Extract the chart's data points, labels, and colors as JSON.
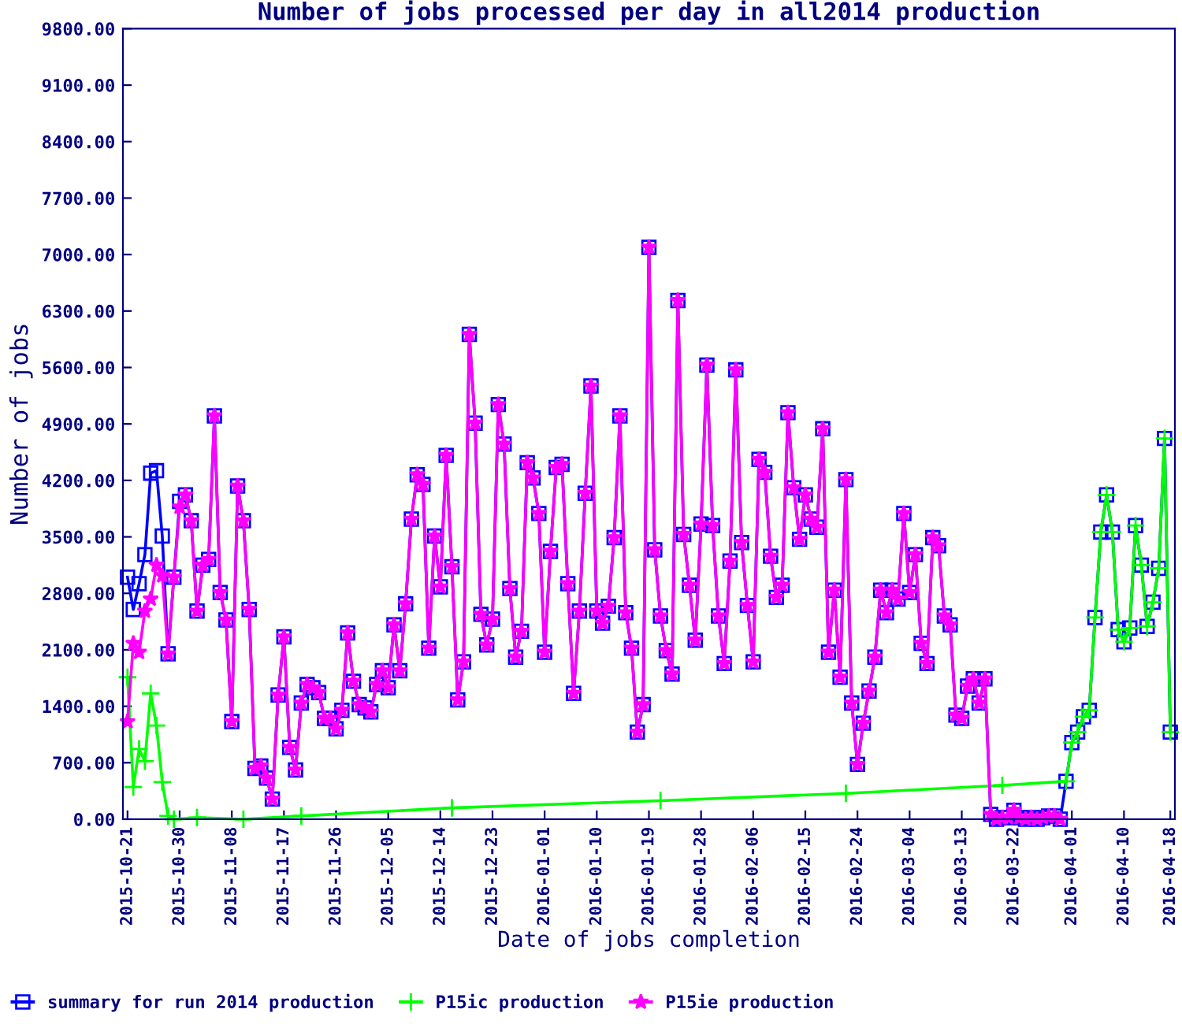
{
  "chart_data": {
    "type": "line",
    "title": "Number of jobs processed per day in all2014 production",
    "xlabel": "Date of jobs completion",
    "ylabel": "Number of jobs",
    "x": [
      "2015-10-21",
      "2015-10-22",
      "2015-10-23",
      "2015-10-24",
      "2015-10-25",
      "2015-10-26",
      "2015-10-27",
      "2015-10-28",
      "2015-10-29",
      "2015-10-30",
      "2015-10-31",
      "2015-11-01",
      "2015-11-02",
      "2015-11-03",
      "2015-11-04",
      "2015-11-05",
      "2015-11-06",
      "2015-11-07",
      "2015-11-08",
      "2015-11-09",
      "2015-11-10",
      "2015-11-11",
      "2015-11-12",
      "2015-11-13",
      "2015-11-14",
      "2015-11-15",
      "2015-11-16",
      "2015-11-17",
      "2015-11-18",
      "2015-11-19",
      "2015-11-20",
      "2015-11-21",
      "2015-11-22",
      "2015-11-23",
      "2015-11-24",
      "2015-11-25",
      "2015-11-26",
      "2015-11-27",
      "2015-11-28",
      "2015-11-29",
      "2015-11-30",
      "2015-12-01",
      "2015-12-02",
      "2015-12-03",
      "2015-12-04",
      "2015-12-05",
      "2015-12-06",
      "2015-12-07",
      "2015-12-08",
      "2015-12-09",
      "2015-12-10",
      "2015-12-11",
      "2015-12-12",
      "2015-12-13",
      "2015-12-14",
      "2015-12-15",
      "2015-12-16",
      "2015-12-17",
      "2015-12-18",
      "2015-12-19",
      "2015-12-20",
      "2015-12-21",
      "2015-12-22",
      "2015-12-23",
      "2015-12-24",
      "2015-12-25",
      "2015-12-26",
      "2015-12-27",
      "2015-12-28",
      "2015-12-29",
      "2015-12-30",
      "2015-12-31",
      "2016-01-01",
      "2016-01-02",
      "2016-01-03",
      "2016-01-04",
      "2016-01-05",
      "2016-01-06",
      "2016-01-07",
      "2016-01-08",
      "2016-01-09",
      "2016-01-10",
      "2016-01-11",
      "2016-01-12",
      "2016-01-13",
      "2016-01-14",
      "2016-01-15",
      "2016-01-16",
      "2016-01-17",
      "2016-01-18",
      "2016-01-19",
      "2016-01-20",
      "2016-01-21",
      "2016-01-22",
      "2016-01-23",
      "2016-01-24",
      "2016-01-25",
      "2016-01-26",
      "2016-01-27",
      "2016-01-28",
      "2016-01-29",
      "2016-01-30",
      "2016-01-31",
      "2016-02-01",
      "2016-02-02",
      "2016-02-03",
      "2016-02-04",
      "2016-02-05",
      "2016-02-06",
      "2016-02-07",
      "2016-02-08",
      "2016-02-09",
      "2016-02-10",
      "2016-02-11",
      "2016-02-12",
      "2016-02-13",
      "2016-02-14",
      "2016-02-15",
      "2016-02-16",
      "2016-02-17",
      "2016-02-18",
      "2016-02-19",
      "2016-02-20",
      "2016-02-21",
      "2016-02-22",
      "2016-02-23",
      "2016-02-24",
      "2016-02-25",
      "2016-02-26",
      "2016-02-27",
      "2016-02-28",
      "2016-02-29",
      "2016-03-01",
      "2016-03-02",
      "2016-03-03",
      "2016-03-04",
      "2016-03-05",
      "2016-03-06",
      "2016-03-07",
      "2016-03-08",
      "2016-03-09",
      "2016-03-10",
      "2016-03-11",
      "2016-03-12",
      "2016-03-13",
      "2016-03-14",
      "2016-03-15",
      "2016-03-16",
      "2016-03-17",
      "2016-03-18",
      "2016-03-19",
      "2016-03-20",
      "2016-03-21",
      "2016-03-22",
      "2016-03-23",
      "2016-03-24",
      "2016-03-25",
      "2016-03-26",
      "2016-03-27",
      "2016-03-28",
      "2016-03-29",
      "2016-03-30",
      "2016-03-31",
      "2016-04-01",
      "2016-04-02",
      "2016-04-03",
      "2016-04-04",
      "2016-04-05",
      "2016-04-06",
      "2016-04-07",
      "2016-04-08",
      "2016-04-09",
      "2016-04-10",
      "2016-04-11",
      "2016-04-12",
      "2016-04-13",
      "2016-04-14",
      "2016-04-15",
      "2016-04-16",
      "2016-04-17",
      "2016-04-18"
    ],
    "series": [
      {
        "name": "summary for run 2014 production",
        "color": "#0000ff",
        "marker": "square",
        "values": [
          3000,
          2600,
          2920,
          3280,
          4290,
          4320,
          3510,
          2050,
          3000,
          3940,
          4020,
          3700,
          2580,
          3150,
          3220,
          5000,
          2810,
          2470,
          1210,
          4130,
          3700,
          2600,
          630,
          660,
          510,
          250,
          1540,
          2260,
          890,
          610,
          1440,
          1670,
          1630,
          1570,
          1250,
          1250,
          1120,
          1350,
          2310,
          1710,
          1420,
          1380,
          1330,
          1670,
          1840,
          1630,
          2410,
          1840,
          2670,
          3720,
          4270,
          4150,
          2120,
          3510,
          2880,
          4510,
          3130,
          1480,
          1950,
          6010,
          4910,
          2540,
          2160,
          2480,
          5140,
          4650,
          2860,
          2010,
          2330,
          4420,
          4230,
          3790,
          2070,
          3320,
          4360,
          4400,
          2920,
          1560,
          2580,
          4040,
          5370,
          2580,
          2430,
          2640,
          3490,
          5000,
          2560,
          2120,
          1080,
          1420,
          7090,
          3340,
          2520,
          2090,
          1800,
          6430,
          3530,
          2900,
          2220,
          3660,
          5630,
          3640,
          2520,
          1930,
          3200,
          5570,
          3430,
          2650,
          1950,
          4460,
          4300,
          3260,
          2750,
          2900,
          5040,
          4110,
          3470,
          4020,
          3720,
          3620,
          4840,
          2070,
          2840,
          1760,
          4210,
          1440,
          680,
          1190,
          1590,
          2010,
          2840,
          2560,
          2840,
          2730,
          3790,
          2810,
          3280,
          2180,
          1930,
          3490,
          3390,
          2520,
          2410,
          1290,
          1250,
          1650,
          1740,
          1440,
          1740,
          60,
          0,
          20,
          20,
          110,
          20,
          0,
          20,
          0,
          20,
          40,
          40,
          0,
          470,
          950,
          1080,
          1270,
          1350,
          2500,
          3560,
          4020,
          3560,
          2350,
          2200,
          2370,
          3640,
          3150,
          2390,
          2690,
          3110,
          4720,
          1080
        ]
      },
      {
        "name": "P15ic production",
        "color": "#00ff00",
        "marker": "cross",
        "x": [
          "2015-10-21",
          "2015-10-22",
          "2015-10-23",
          "2015-10-24",
          "2015-10-25",
          "2015-10-26",
          "2015-10-27",
          "2015-10-28",
          "2015-10-29",
          "2015-11-02",
          "2015-11-10",
          "2015-11-20",
          "2015-12-16",
          "2016-01-21",
          "2016-02-22",
          "2016-03-20",
          "2016-03-31",
          "2016-04-01",
          "2016-04-02",
          "2016-04-03",
          "2016-04-04",
          "2016-04-05",
          "2016-04-06",
          "2016-04-07",
          "2016-04-08",
          "2016-04-09",
          "2016-04-10",
          "2016-04-11",
          "2016-04-12",
          "2016-04-13",
          "2016-04-14",
          "2016-04-15",
          "2016-04-16",
          "2016-04-17",
          "2016-04-18"
        ],
        "values": [
          1760,
          400,
          870,
          720,
          1560,
          1160,
          460,
          40,
          0,
          20,
          0,
          40,
          140,
          230,
          320,
          420,
          470,
          950,
          1080,
          1270,
          1350,
          2500,
          3560,
          4020,
          3560,
          2350,
          2200,
          2370,
          3640,
          3150,
          2390,
          2690,
          3110,
          4720,
          1080
        ]
      },
      {
        "name": "P15ie production",
        "color": "#ff00ff",
        "marker": "star",
        "values": [
          1210,
          2180,
          2070,
          2580,
          2730,
          3150,
          3020,
          2050,
          3000,
          3870,
          4020,
          3700,
          2580,
          3150,
          3220,
          5000,
          2810,
          2470,
          1210,
          4130,
          3700,
          2600,
          630,
          660,
          510,
          250,
          1540,
          2260,
          890,
          610,
          1440,
          1670,
          1630,
          1570,
          1250,
          1250,
          1120,
          1350,
          2310,
          1710,
          1420,
          1380,
          1330,
          1670,
          1840,
          1630,
          2410,
          1840,
          2670,
          3720,
          4270,
          4150,
          2120,
          3510,
          2880,
          4510,
          3130,
          1480,
          1950,
          6010,
          4910,
          2540,
          2160,
          2480,
          5140,
          4650,
          2860,
          2010,
          2330,
          4420,
          4230,
          3790,
          2070,
          3320,
          4360,
          4400,
          2920,
          1560,
          2580,
          4040,
          5370,
          2580,
          2430,
          2640,
          3490,
          5000,
          2560,
          2120,
          1080,
          1420,
          7090,
          3340,
          2520,
          2090,
          1800,
          6430,
          3530,
          2900,
          2220,
          3660,
          5630,
          3640,
          2520,
          1930,
          3200,
          5570,
          3430,
          2650,
          1950,
          4460,
          4300,
          3260,
          2750,
          2900,
          5040,
          4110,
          3470,
          4020,
          3720,
          3620,
          4840,
          2070,
          2840,
          1760,
          4210,
          1440,
          680,
          1190,
          1590,
          2010,
          2840,
          2560,
          2840,
          2730,
          3790,
          2810,
          3280,
          2180,
          1930,
          3490,
          3390,
          2520,
          2410,
          1290,
          1250,
          1650,
          1740,
          1440,
          1740,
          60,
          0,
          20,
          20,
          110,
          20,
          0,
          20,
          0,
          20,
          40,
          40,
          0,
          null,
          null,
          null,
          null,
          null,
          null,
          null,
          null,
          null,
          null,
          null,
          null,
          null,
          null,
          null,
          null,
          null,
          null,
          null
        ]
      }
    ],
    "xlim": [
      "2015-10-20T05:00",
      "2016-04-18T19:00"
    ],
    "xticks": [
      "2015-10-21",
      "2015-10-30",
      "2015-11-08",
      "2015-11-17",
      "2015-11-26",
      "2015-12-05",
      "2015-12-14",
      "2015-12-23",
      "2016-01-01",
      "2016-01-10",
      "2016-01-19",
      "2016-01-28",
      "2016-02-06",
      "2016-02-15",
      "2016-02-24",
      "2016-03-04",
      "2016-03-13",
      "2016-03-22",
      "2016-04-01",
      "2016-04-10",
      "2016-04-18"
    ],
    "ylim": [
      0,
      9800
    ],
    "yticks": [
      {
        "value": 0,
        "label": "0.00"
      },
      {
        "value": 700,
        "label": "700.00"
      },
      {
        "value": 1400,
        "label": "1400.00"
      },
      {
        "value": 2100,
        "label": "2100.00"
      },
      {
        "value": 2800,
        "label": "2800.00"
      },
      {
        "value": 3500,
        "label": "3500.00"
      },
      {
        "value": 4200,
        "label": "4200.00"
      },
      {
        "value": 4900,
        "label": "4900.00"
      },
      {
        "value": 5600,
        "label": "5600.00"
      },
      {
        "value": 6300,
        "label": "6300.00"
      },
      {
        "value": 7000,
        "label": "7000.00"
      },
      {
        "value": 7700,
        "label": "7700.00"
      },
      {
        "value": 8400,
        "label": "8400.00"
      },
      {
        "value": 9100,
        "label": "9100.00"
      },
      {
        "value": 9800,
        "label": "9800.00"
      }
    ],
    "grid": false,
    "legend": "bottom",
    "line_style": "solid"
  }
}
